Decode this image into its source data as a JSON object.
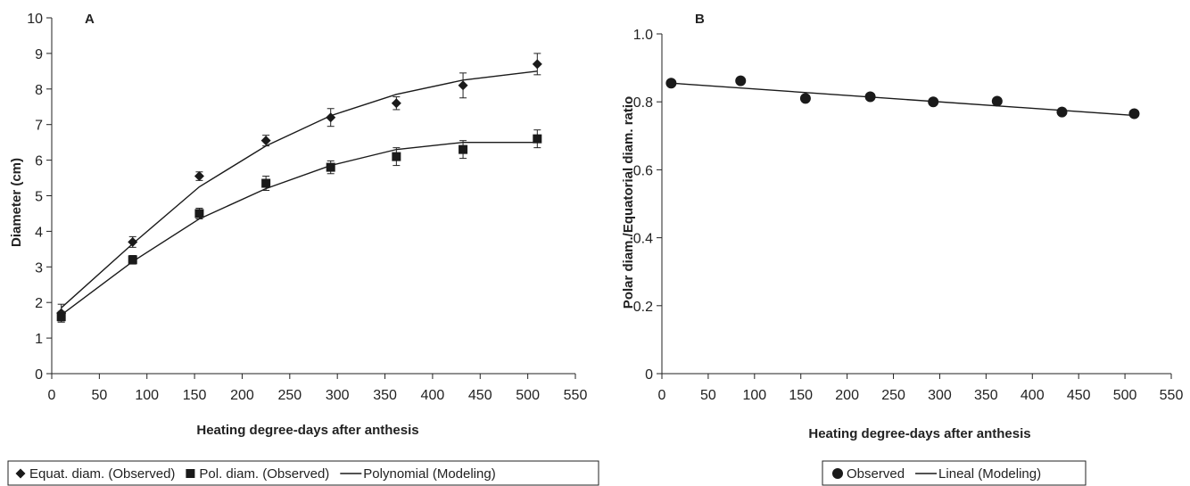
{
  "chart_data": [
    {
      "panel_label": "A",
      "type": "scatter",
      "xlabel": "Heating degree-days after anthesis",
      "ylabel": "Diameter (cm)",
      "xlim": [
        0,
        550
      ],
      "ylim": [
        0,
        10
      ],
      "xticks": [
        0,
        50,
        100,
        150,
        200,
        250,
        300,
        350,
        400,
        450,
        500,
        550
      ],
      "yticks": [
        0,
        1,
        2,
        3,
        4,
        5,
        6,
        7,
        8,
        9,
        10
      ],
      "grid": false,
      "legend_position": "bottom",
      "series": [
        {
          "name": "Equat. diam. (Observed)",
          "marker": "diamond",
          "x": [
            10,
            85,
            155,
            225,
            293,
            362,
            432,
            510
          ],
          "y": [
            1.7,
            3.7,
            5.55,
            6.55,
            7.2,
            7.6,
            8.1,
            8.7
          ],
          "err": [
            0.25,
            0.15,
            0.12,
            0.15,
            0.25,
            0.18,
            0.35,
            0.3
          ]
        },
        {
          "name": "Pol. diam. (Observed)",
          "marker": "square",
          "x": [
            10,
            85,
            155,
            225,
            293,
            362,
            432,
            510
          ],
          "y": [
            1.6,
            3.2,
            4.5,
            5.35,
            5.8,
            6.1,
            6.3,
            6.6
          ],
          "err": [
            0.15,
            0.12,
            0.15,
            0.2,
            0.18,
            0.25,
            0.25,
            0.25
          ]
        },
        {
          "name": "Polynomial (Modeling)",
          "type": "line",
          "x": [
            10,
            85,
            155,
            225,
            293,
            362,
            432,
            510
          ],
          "y": [
            1.85,
            3.65,
            5.25,
            6.4,
            7.25,
            7.85,
            8.25,
            8.5
          ]
        },
        {
          "type": "line",
          "x": [
            10,
            85,
            155,
            225,
            293,
            362,
            432,
            510
          ],
          "y": [
            1.65,
            3.15,
            4.35,
            5.2,
            5.85,
            6.3,
            6.5,
            6.5
          ]
        }
      ]
    },
    {
      "panel_label": "B",
      "type": "scatter",
      "xlabel": "Heating degree-days after anthesis",
      "ylabel": "Polar diam./Equatorial diam. ratio",
      "xlim": [
        0,
        550
      ],
      "ylim": [
        0,
        1
      ],
      "xticks": [
        0,
        50,
        100,
        150,
        200,
        250,
        300,
        350,
        400,
        450,
        500,
        550
      ],
      "yticks": [
        0,
        0.2,
        0.4,
        0.6,
        0.8,
        1.0
      ],
      "ytick_labels": [
        "0",
        "0.2",
        "0.4",
        "0.6",
        "0.8",
        "1.0"
      ],
      "grid": false,
      "legend_position": "bottom",
      "series": [
        {
          "name": "Observed",
          "marker": "circle",
          "x": [
            10,
            85,
            155,
            225,
            293,
            362,
            432,
            510
          ],
          "y": [
            0.855,
            0.862,
            0.81,
            0.815,
            0.8,
            0.802,
            0.77,
            0.765
          ]
        },
        {
          "name": "Lineal (Modeling)",
          "type": "line",
          "x": [
            10,
            510
          ],
          "y": [
            0.855,
            0.76
          ]
        }
      ]
    }
  ]
}
